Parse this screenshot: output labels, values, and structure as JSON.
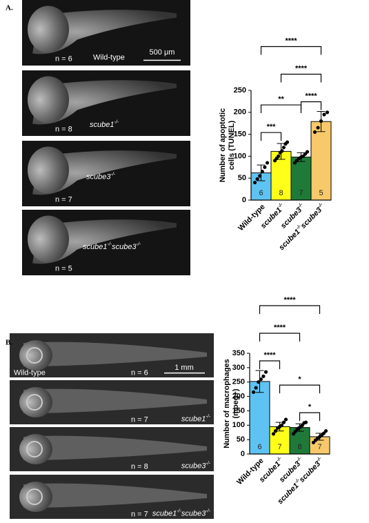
{
  "panels": [
    {
      "label": "A.",
      "images": [
        {
          "n": "n = 6",
          "genotype": {
            "italic": false,
            "parts": [
              {
                "text": "Wild-type"
              }
            ]
          },
          "scale_bar": "500 μm"
        },
        {
          "n": "n = 8",
          "genotype": {
            "italic": true,
            "parts": [
              {
                "text": "scube1"
              },
              {
                "text": "-/-",
                "sup": true
              }
            ]
          }
        },
        {
          "n": "n = 7",
          "genotype": {
            "italic": true,
            "parts": [
              {
                "text": "scube3"
              },
              {
                "text": "-/-",
                "sup": true
              }
            ]
          }
        },
        {
          "n": "n = 5",
          "genotype": {
            "italic": true,
            "parts": [
              {
                "text": "scube1"
              },
              {
                "text": "-/-",
                "sup": true
              },
              {
                "text": "scube3"
              },
              {
                "text": "-/-",
                "sup": true
              }
            ]
          }
        }
      ]
    },
    {
      "label": "B.",
      "images": [
        {
          "n": "n = 6",
          "genotype": {
            "italic": false,
            "parts": [
              {
                "text": "Wild-type"
              }
            ]
          },
          "scale_bar": "1 mm"
        },
        {
          "n": "n = 7",
          "genotype": {
            "italic": true,
            "parts": [
              {
                "text": "scube1"
              },
              {
                "text": "-/-",
                "sup": true
              }
            ]
          }
        },
        {
          "n": "n = 8",
          "genotype": {
            "italic": true,
            "parts": [
              {
                "text": "scube3"
              },
              {
                "text": "-/-",
                "sup": true
              }
            ]
          }
        },
        {
          "n": "n = 7",
          "genotype": {
            "italic": true,
            "parts": [
              {
                "text": "scube1"
              },
              {
                "text": "-/-",
                "sup": true
              },
              {
                "text": "scube3"
              },
              {
                "text": "-/-",
                "sup": true
              }
            ]
          }
        }
      ]
    }
  ],
  "chart_data": [
    {
      "type": "bar",
      "y_label": [
        "Number of apoptotic",
        "cells (TUNEL)"
      ],
      "categories": [
        {
          "italic": false,
          "parts": [
            {
              "text": "Wild-type"
            }
          ]
        },
        {
          "italic": true,
          "parts": [
            {
              "text": "scube1"
            },
            {
              "text": "-/-",
              "sup": true
            }
          ]
        },
        {
          "italic": true,
          "parts": [
            {
              "text": "scube3"
            },
            {
              "text": "-/-",
              "sup": true
            }
          ]
        },
        {
          "italic": true,
          "parts": [
            {
              "text": "scube1"
            },
            {
              "text": "-/-",
              "sup": true
            },
            {
              "text": "scube3"
            },
            {
              "text": "-/-",
              "sup": true
            }
          ]
        }
      ],
      "values": [
        62,
        111,
        98,
        179
      ],
      "errors": [
        18,
        18,
        10,
        23
      ],
      "points": [
        [
          40,
          48,
          55,
          65,
          75,
          85
        ],
        [
          90,
          95,
          100,
          108,
          112,
          120,
          128,
          132
        ],
        [
          85,
          90,
          95,
          98,
          100,
          105,
          110
        ],
        [
          155,
          165,
          180,
          195,
          200
        ]
      ],
      "n_labels": [
        6,
        8,
        7,
        5
      ],
      "colors": [
        "#5ec3f2",
        "#ffff1a",
        "#1f7a3a",
        "#f7c96b"
      ],
      "ylim": [
        0,
        250
      ],
      "yticks": [
        0,
        50,
        100,
        150,
        200,
        250
      ],
      "significance": [
        {
          "from": 0,
          "to": 1,
          "label": "***"
        },
        {
          "from": 2,
          "to": 3,
          "label": "****"
        },
        {
          "from": 0,
          "to": 2,
          "label": "**"
        },
        {
          "from": 1,
          "to": 3,
          "label": "****"
        },
        {
          "from": 0,
          "to": 3,
          "label": "****"
        }
      ]
    },
    {
      "type": "bar",
      "y_label": [
        "Number of macrophages",
        "(mpeg+)"
      ],
      "categories": [
        {
          "italic": false,
          "parts": [
            {
              "text": "Wild-type"
            }
          ]
        },
        {
          "italic": true,
          "parts": [
            {
              "text": "scube1"
            },
            {
              "text": "-/-",
              "sup": true
            }
          ]
        },
        {
          "italic": true,
          "parts": [
            {
              "text": "scube3"
            },
            {
              "text": "-/-",
              "sup": true
            }
          ]
        },
        {
          "italic": true,
          "parts": [
            {
              "text": "scube1"
            },
            {
              "text": "-/-",
              "sup": true
            },
            {
              "text": "scube3"
            },
            {
              "text": "-/-",
              "sup": true
            }
          ]
        }
      ],
      "values": [
        252,
        95,
        92,
        60
      ],
      "errors": [
        38,
        15,
        13,
        12
      ],
      "points": [
        [
          215,
          230,
          250,
          260,
          270,
          285
        ],
        [
          70,
          80,
          90,
          95,
          100,
          110,
          120
        ],
        [
          70,
          78,
          85,
          90,
          95,
          100,
          108,
          110
        ],
        [
          40,
          48,
          55,
          60,
          65,
          72,
          80
        ]
      ],
      "n_labels": [
        6,
        7,
        8,
        7
      ],
      "colors": [
        "#5ec3f2",
        "#ffff1a",
        "#1f7a3a",
        "#f7c96b"
      ],
      "ylim": [
        0,
        350
      ],
      "yticks": [
        0,
        50,
        100,
        150,
        200,
        250,
        300,
        350
      ],
      "significance": [
        {
          "from": 0,
          "to": 1,
          "label": "****"
        },
        {
          "from": 2,
          "to": 3,
          "label": "*"
        },
        {
          "from": 0,
          "to": 2,
          "label": "****"
        },
        {
          "from": 1,
          "to": 3,
          "label": "*"
        },
        {
          "from": 0,
          "to": 3,
          "label": "****"
        }
      ]
    }
  ]
}
